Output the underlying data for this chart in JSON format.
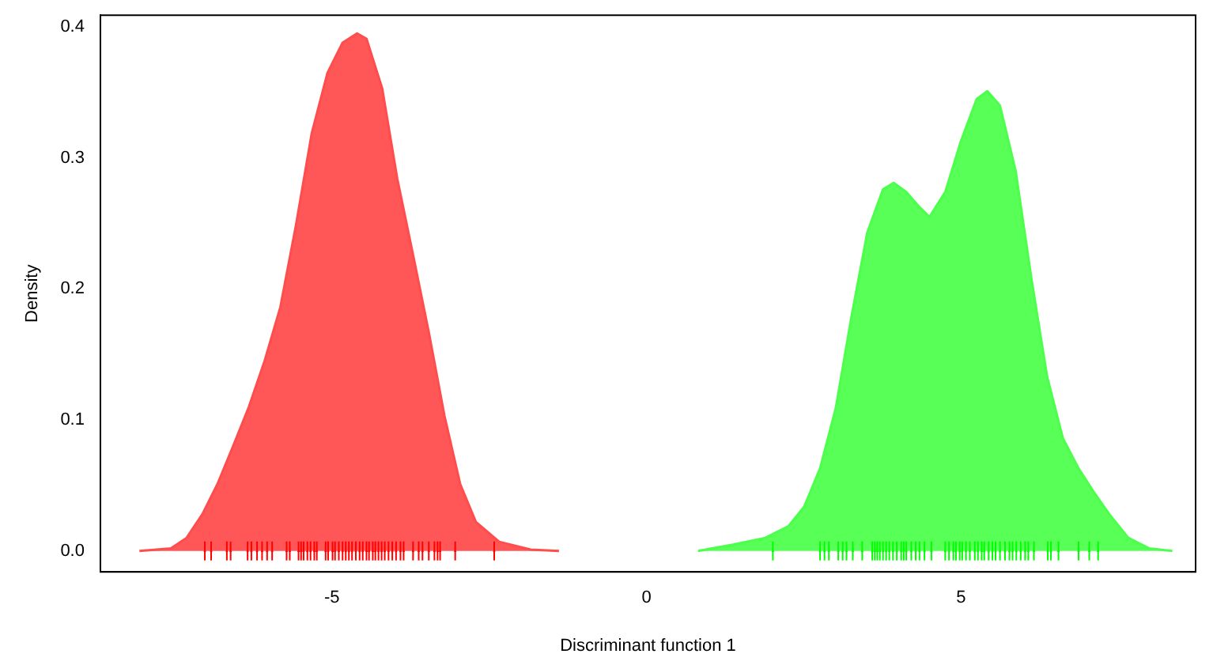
{
  "chart_data": {
    "type": "area",
    "xlabel": "Discriminant function 1",
    "ylabel": "Density",
    "xlim": [
      -8.68,
      8.73
    ],
    "ylim": [
      -0.016,
      0.409
    ],
    "xticks": [
      -5,
      0,
      5
    ],
    "yticks": [
      {
        "value": 0,
        "label": "0.0"
      },
      {
        "value": 0.1,
        "label": "0.1"
      },
      {
        "value": 0.2,
        "label": "0.2"
      },
      {
        "value": 0.3,
        "label": "0.3"
      },
      {
        "value": 0.4,
        "label": "0.4"
      }
    ],
    "grid": false,
    "legend": false,
    "series": [
      {
        "color": "#ff4d4d",
        "x": [
          -8.06,
          -7.56,
          -7.31,
          -7.06,
          -6.82,
          -6.57,
          -6.32,
          -6.07,
          -5.82,
          -5.57,
          -5.32,
          -5.07,
          -4.83,
          -4.6,
          -4.45,
          -4.2,
          -3.96,
          -3.71,
          -3.46,
          -3.21,
          -2.96,
          -2.71,
          -2.34,
          -1.84,
          -1.39
        ],
        "values": [
          0,
          0.002,
          0.01,
          0.028,
          0.051,
          0.08,
          0.11,
          0.145,
          0.186,
          0.249,
          0.319,
          0.365,
          0.388,
          0.395,
          0.391,
          0.353,
          0.284,
          0.226,
          0.167,
          0.103,
          0.051,
          0.022,
          0.007,
          0.001,
          0
        ]
      },
      {
        "color": "#4dff4d",
        "x": [
          0.82,
          1.39,
          1.89,
          2.26,
          2.51,
          2.76,
          3.01,
          3.26,
          3.51,
          3.76,
          3.93,
          4.13,
          4.33,
          4.5,
          4.75,
          5.0,
          5.25,
          5.42,
          5.62,
          5.87,
          6.12,
          6.37,
          6.62,
          6.87,
          7.11,
          7.36,
          7.66,
          7.99,
          8.36
        ],
        "values": [
          0,
          0.005,
          0.01,
          0.019,
          0.034,
          0.063,
          0.109,
          0.179,
          0.243,
          0.276,
          0.281,
          0.274,
          0.263,
          0.255,
          0.274,
          0.313,
          0.345,
          0.351,
          0.34,
          0.29,
          0.208,
          0.133,
          0.086,
          0.063,
          0.045,
          0.028,
          0.01,
          0.002,
          0
        ]
      },
      {
        "type": "scatter",
        "color": "#ff0000",
        "x": [
          -7.02,
          -6.92,
          -6.67,
          -6.61,
          -6.34,
          -6.28,
          -6.19,
          -6.11,
          -6.03,
          -5.95,
          -5.72,
          -5.67,
          -5.53,
          -5.49,
          -5.45,
          -5.39,
          -5.34,
          -5.28,
          -5.24,
          -5.1,
          -5.06,
          -4.99,
          -4.95,
          -4.89,
          -4.83,
          -4.78,
          -4.73,
          -4.68,
          -4.62,
          -4.56,
          -4.51,
          -4.45,
          -4.41,
          -4.35,
          -4.31,
          -4.26,
          -4.21,
          -4.16,
          -4.1,
          -4.04,
          -3.98,
          -3.91,
          -3.86,
          -3.71,
          -3.62,
          -3.56,
          -3.46,
          -3.37,
          -3.32,
          -3.28,
          -3.04,
          -2.42
        ],
        "values": [
          0,
          0,
          0,
          0,
          0,
          0,
          0,
          0,
          0,
          0,
          0,
          0,
          0,
          0,
          0,
          0,
          0,
          0,
          0,
          0,
          0,
          0,
          0,
          0,
          0,
          0,
          0,
          0,
          0,
          0,
          0,
          0,
          0,
          0,
          0,
          0,
          0,
          0,
          0,
          0,
          0,
          0,
          0,
          0,
          0,
          0,
          0,
          0,
          0,
          0,
          0,
          0
        ]
      },
      {
        "type": "scatter",
        "color": "#00ff00",
        "x": [
          2.01,
          2.76,
          2.83,
          2.9,
          3.05,
          3.12,
          3.18,
          3.28,
          3.43,
          3.59,
          3.63,
          3.67,
          3.71,
          3.76,
          3.81,
          3.86,
          3.92,
          3.98,
          4.05,
          4.09,
          4.13,
          4.21,
          4.28,
          4.34,
          4.42,
          4.53,
          4.75,
          4.81,
          4.88,
          4.92,
          4.98,
          5.02,
          5.08,
          5.14,
          5.22,
          5.27,
          5.33,
          5.37,
          5.44,
          5.5,
          5.55,
          5.62,
          5.7,
          5.77,
          5.82,
          5.88,
          5.95,
          6.02,
          6.07,
          6.16,
          6.38,
          6.43,
          6.55,
          6.87,
          7.04,
          7.18
        ],
        "values": [
          0,
          0,
          0,
          0,
          0,
          0,
          0,
          0,
          0,
          0,
          0,
          0,
          0,
          0,
          0,
          0,
          0,
          0,
          0,
          0,
          0,
          0,
          0,
          0,
          0,
          0,
          0,
          0,
          0,
          0,
          0,
          0,
          0,
          0,
          0,
          0,
          0,
          0,
          0,
          0,
          0,
          0,
          0,
          0,
          0,
          0,
          0,
          0,
          0,
          0,
          0,
          0,
          0,
          0,
          0,
          0
        ]
      }
    ]
  }
}
